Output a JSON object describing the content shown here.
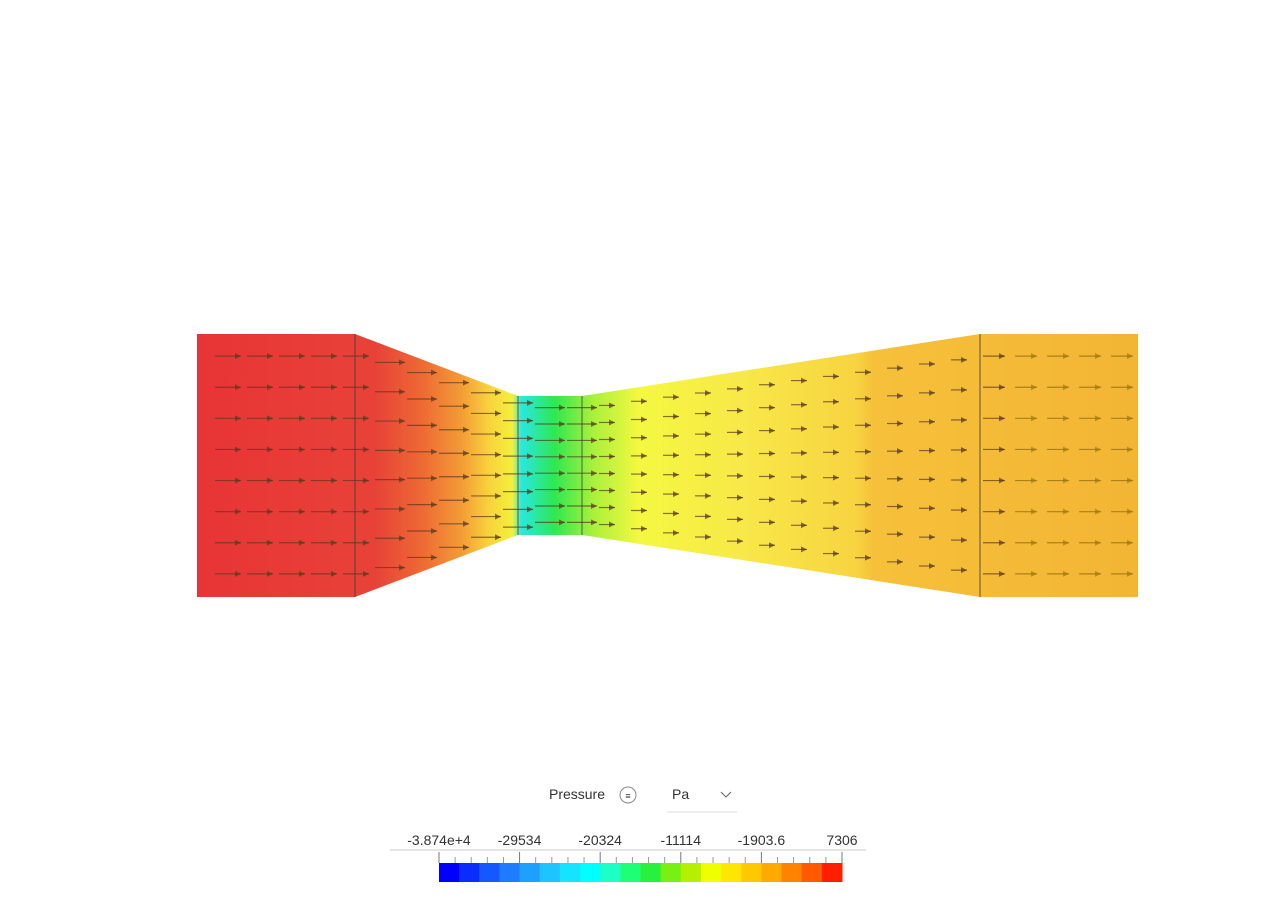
{
  "legend": {
    "title": "Pressure",
    "unit": "Pa",
    "range": [
      -38740,
      7306
    ],
    "ticks": [
      {
        "value": -38740,
        "label": "-3.874e+4"
      },
      -29534,
      -20324,
      -11114,
      -1903.6,
      7306
    ],
    "colors": [
      "#0000ff",
      "#0a2cff",
      "#1458ff",
      "#1e7cff",
      "#1ea0ff",
      "#1ec4ff",
      "#14e4ff",
      "#00ffff",
      "#1effc8",
      "#1eff78",
      "#28f03c",
      "#78f014",
      "#b4f000",
      "#f0ff00",
      "#ffe600",
      "#ffc800",
      "#ffaa00",
      "#ff8200",
      "#ff5a00",
      "#ff1e00"
    ]
  }
}
